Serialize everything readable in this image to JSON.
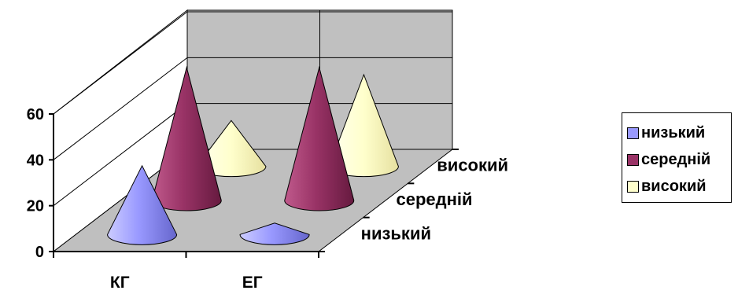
{
  "chart_data": {
    "type": "bar",
    "shape": "3d-cone",
    "categories": [
      "КГ",
      "ЕГ"
    ],
    "series": [
      {
        "name": "низький",
        "color": "#9999ff",
        "values": [
          30,
          5
        ]
      },
      {
        "name": "середній",
        "color": "#993366",
        "values": [
          58,
          58
        ]
      },
      {
        "name": "високий",
        "color": "#ffffcc",
        "values": [
          20,
          40
        ]
      }
    ],
    "depth_labels": [
      "низький",
      "середній",
      "високий"
    ],
    "y_ticks": [
      "0",
      "20",
      "40",
      "60"
    ],
    "ylim": [
      0,
      60
    ],
    "legend_position": "right",
    "grid": true
  }
}
